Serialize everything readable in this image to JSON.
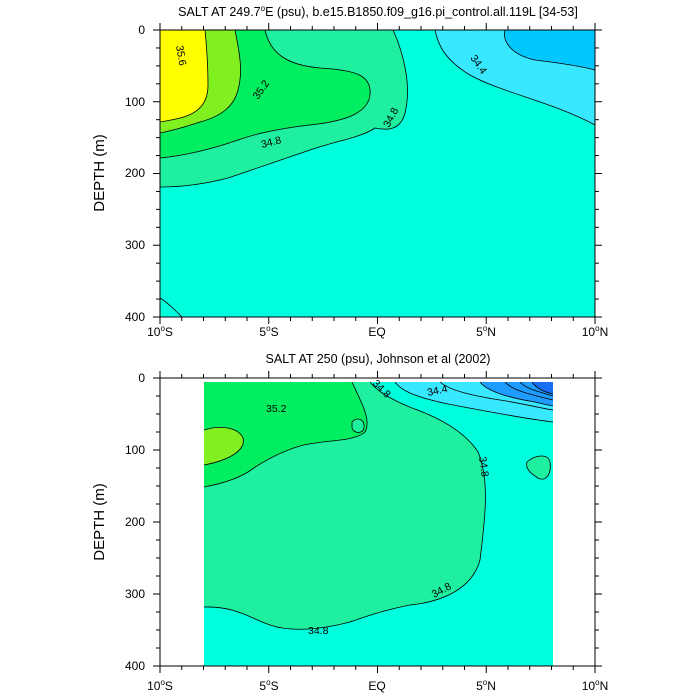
{
  "chart_data": [
    {
      "type": "heatmap",
      "title": "SALT AT 249.7°E (psu), b.e15.B1850.f09_g16.pi_control.all.119L [34-53]",
      "title_parts": {
        "main": "SALT AT 249.7",
        "sup": "o",
        "rest": "E (psu), b.e15.B1850.f09_g16.pi_control.all.119L [34-53]"
      },
      "ylabel": "DEPTH (m)",
      "xlim": [
        -10,
        10
      ],
      "ylim": [
        400,
        0
      ],
      "y_ticks": [
        "0",
        "100",
        "200",
        "300",
        "400"
      ],
      "x_ticks": [
        {
          "num": "10",
          "sup": "o",
          "hemi": "S"
        },
        {
          "num": "5",
          "sup": "o",
          "hemi": "S"
        },
        {
          "num": "EQ",
          "sup": "",
          "hemi": ""
        },
        {
          "num": "5",
          "sup": "o",
          "hemi": "N"
        },
        {
          "num": "10",
          "sup": "o",
          "hemi": "N"
        }
      ],
      "contour_labels": [
        "35.6",
        "35.2",
        "34.8",
        "34.8",
        "34.4"
      ],
      "colors": {
        "lowest": "#0090ff",
        "low": "#00c8ff",
        "lowmid": "#38e8ff",
        "base": "#00ffdc",
        "mid": "#1ef0a0",
        "high": "#00ee60",
        "higher": "#80f020",
        "highest": "#ffff00"
      }
    },
    {
      "type": "heatmap",
      "title": "SALT AT 250 (psu), Johnson et al (2002)",
      "ylabel": "DEPTH (m)",
      "xlim": [
        -10,
        10
      ],
      "ylim": [
        400,
        0
      ],
      "y_ticks": [
        "0",
        "100",
        "200",
        "300",
        "400"
      ],
      "x_ticks": [
        {
          "num": "10",
          "sup": "o",
          "hemi": "S"
        },
        {
          "num": "5",
          "sup": "o",
          "hemi": "S"
        },
        {
          "num": "EQ",
          "sup": "",
          "hemi": ""
        },
        {
          "num": "5",
          "sup": "o",
          "hemi": "N"
        },
        {
          "num": "10",
          "sup": "o",
          "hemi": "N"
        }
      ],
      "data_extent_lon": [
        -8,
        8.2
      ],
      "data_extent_depth": [
        5,
        400
      ],
      "contour_labels": [
        "35.2",
        "34.8",
        "34.4",
        "34.8",
        "34.8",
        "34.8"
      ],
      "colors": {
        "deep_blue": "#1a6cf0",
        "blue": "#1e9cff",
        "cyan": "#38e8ff",
        "base": "#00ffdc",
        "mid": "#1ef0a0",
        "high": "#00ee60",
        "higher": "#80f020"
      }
    }
  ]
}
